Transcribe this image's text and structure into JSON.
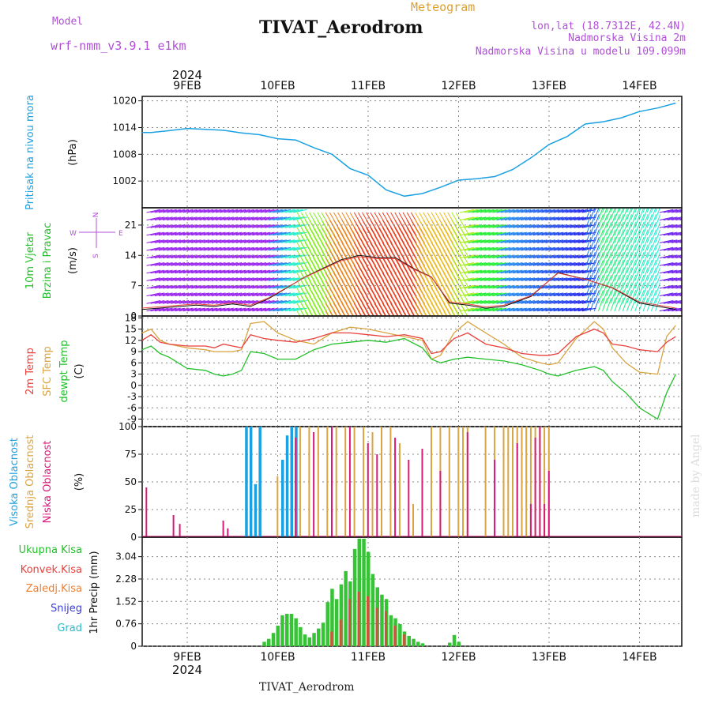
{
  "header": {
    "model_label": "Model",
    "model_name": "wrf-nmm_v3.9.1 e1km",
    "title": "TIVAT_Aerodrom",
    "meteogram": "Meteogram",
    "lonlat": "lon,lat (18.7312E, 42.4N)",
    "elevation": "Nadmorska Visina 2m",
    "model_elevation": "Nadmorska Visina u modelu 109.099m"
  },
  "footer_station": "TIVAT_Aerodrom",
  "credit": "made by Angel",
  "year": "2024",
  "dates": [
    "9FEB",
    "10FEB",
    "11FEB",
    "12FEB",
    "13FEB",
    "14FEB"
  ],
  "colors": {
    "pressure": "#1ba1e2",
    "temp2m": "#e8413c",
    "sfc": "#d9a441",
    "dew": "#22c02a",
    "high_cloud": "#1ba1e2",
    "mid_cloud": "#d9a441",
    "low_cloud": "#d81b7a",
    "total_precip": "#36c436",
    "conv_precip": "#e8413c"
  },
  "panels": {
    "pressure": {
      "label": "Pritisak na nivou mora",
      "unit": "(hPa)"
    },
    "wind": {
      "label1": "10m Vjetar",
      "label2": "Brzina i Pravac",
      "unit": "(m/s)",
      "compass_n": "N",
      "compass_w": "W",
      "compass_e": "E",
      "compass_s": "S"
    },
    "temp": {
      "label1": "2m Temp",
      "label2": "SFC Temp",
      "label3": "dewpt Temp",
      "unit": "(C)"
    },
    "cloud": {
      "label1": "Visoka Oblacnost",
      "label2": "Srednja Oblacnost",
      "label3": "Niska Oblacnost",
      "unit": "(%)"
    },
    "precip": {
      "legend": [
        "Ukupna Kisa",
        "Konvek.Kisa",
        "Zaledj.Kisa",
        "Snijeg",
        "Grad"
      ],
      "unit": "1hr Precip (mm)"
    }
  },
  "chart_data": [
    {
      "type": "line",
      "title": "Pritisak na nivou mora",
      "ylabel": "(hPa)",
      "ylim": [
        996,
        1021
      ],
      "yticks": [
        "1002",
        "1008",
        "1014",
        "1020"
      ],
      "x_days": [
        0,
        0.1,
        0.3,
        0.5,
        0.7,
        0.9,
        1.1,
        1.3,
        1.5,
        1.7,
        1.9,
        2.1,
        2.3,
        2.5,
        2.7,
        2.9,
        3.1,
        3.3,
        3.5,
        3.7,
        3.9,
        4.1,
        4.3,
        4.5,
        4.7,
        4.9,
        5.1,
        5.3,
        5.5,
        5.7,
        5.9
      ],
      "series": [
        {
          "values": [
            1012.9,
            1012.9,
            1013.3,
            1013.8,
            1013.6,
            1013.4,
            1012.8,
            1012.4,
            1011.5,
            1011.2,
            1009.5,
            1008,
            1004.8,
            1003.3,
            1000,
            998.6,
            999.2,
            1000.6,
            1002.2,
            1002.5,
            1003,
            1004.6,
            1007.2,
            1010.2,
            1012,
            1014.8,
            1015.3,
            1016.2,
            1017.6,
            1018.4,
            1019.5
          ]
        }
      ]
    },
    {
      "type": "line",
      "title": "10m Vjetar Brzina i Pravac",
      "ylabel": "(m/s)",
      "ylim": [
        0,
        25
      ],
      "yticks": [
        "0",
        "7",
        "14",
        "21"
      ],
      "x_days": [
        0,
        0.3,
        0.6,
        0.8,
        1.0,
        1.2,
        1.4,
        1.6,
        1.8,
        2.0,
        2.2,
        2.4,
        2.6,
        2.8,
        3.0,
        3.2,
        3.4,
        3.6,
        3.8,
        4.0,
        4.3,
        4.6,
        4.9,
        5.2,
        5.5,
        5.9
      ],
      "series": [
        {
          "values": [
            1.5,
            2,
            2.5,
            2.2,
            2.8,
            2.2,
            4,
            6.5,
            9,
            11,
            13,
            14,
            13.5,
            13.5,
            11,
            9,
            3,
            2.5,
            1.8,
            2.2,
            4.5,
            10,
            8.5,
            6.5,
            3,
            1.5
          ]
        }
      ]
    },
    {
      "type": "line",
      "title": "2m Temp / SFC Temp / dewpt Temp",
      "ylabel": "(C)",
      "ylim": [
        -11,
        18.5
      ],
      "yticks": [
        "-9",
        "-6",
        "-3",
        "0",
        "3",
        "6",
        "9",
        "12",
        "15",
        "18"
      ],
      "x_days": [
        0,
        0.1,
        0.2,
        0.3,
        0.5,
        0.7,
        0.8,
        0.9,
        1.0,
        1.1,
        1.2,
        1.35,
        1.5,
        1.7,
        1.9,
        2.1,
        2.3,
        2.5,
        2.7,
        2.9,
        3.1,
        3.2,
        3.3,
        3.45,
        3.6,
        3.8,
        4.0,
        4.2,
        4.4,
        4.5,
        4.6,
        4.8,
        5.0,
        5.1,
        5.2,
        5.35,
        5.5,
        5.7,
        5.8,
        5.9
      ],
      "series": [
        {
          "name": "2m Temp",
          "values": [
            12,
            13.5,
            11.5,
            11,
            10.5,
            10.5,
            10,
            11,
            10.5,
            10,
            13.5,
            12.5,
            12,
            11.5,
            12.5,
            14,
            14,
            13.5,
            13,
            13.5,
            12.5,
            8.5,
            9,
            12.5,
            14,
            11,
            10,
            8.5,
            8,
            8,
            8.5,
            13,
            15,
            14,
            11,
            10.5,
            9.5,
            9,
            11.5,
            13
          ]
        },
        {
          "name": "SFC Temp",
          "values": [
            14,
            15,
            12,
            11,
            10,
            9.5,
            9,
            9,
            9,
            9.5,
            16.5,
            17,
            14,
            12,
            11,
            14,
            15.5,
            15,
            14,
            13,
            12,
            7,
            8,
            14,
            17,
            14,
            11,
            7.5,
            6,
            5.5,
            6,
            12.5,
            17,
            15,
            10,
            6,
            3.5,
            3,
            13,
            16
          ]
        },
        {
          "name": "dewpt Temp",
          "values": [
            9.5,
            10.5,
            8.5,
            7.5,
            4.5,
            4,
            3,
            2.5,
            3,
            4,
            9,
            8.5,
            7,
            7,
            9.5,
            11,
            11.5,
            12,
            11.5,
            12.5,
            10,
            7,
            6,
            7,
            7.5,
            7,
            6.5,
            5.5,
            4,
            3,
            2.5,
            4,
            5,
            4,
            1,
            -2,
            -6,
            -9,
            -2,
            3
          ]
        }
      ]
    },
    {
      "type": "bar",
      "title": "Visoka / Srednja / Niska Oblacnost",
      "ylabel": "(%)",
      "ylim": [
        0,
        100
      ],
      "yticks": [
        "0",
        "25",
        "50",
        "75",
        "100"
      ],
      "series": [
        {
          "name": "Visoka Oblacnost",
          "x_days": [
            1.15,
            1.2,
            1.25,
            1.3,
            1.55,
            1.6,
            1.65,
            1.7
          ],
          "values": [
            100,
            100,
            48,
            100,
            70,
            92,
            100,
            100
          ]
        },
        {
          "name": "Srednja Oblacnost",
          "x_days": [
            1.5,
            1.75,
            1.85,
            1.95,
            2.05,
            2.15,
            2.25,
            2.35,
            2.45,
            2.55,
            2.65,
            2.75,
            2.85,
            3.0,
            3.2,
            3.3,
            3.4,
            3.5,
            3.55,
            3.6,
            3.8,
            3.9,
            4.0,
            4.05,
            4.1,
            4.15,
            4.2,
            4.25,
            4.3,
            4.35,
            4.4,
            4.45,
            4.5
          ],
          "values": [
            55,
            100,
            100,
            100,
            100,
            100,
            100,
            100,
            100,
            95,
            100,
            100,
            85,
            30,
            100,
            100,
            100,
            100,
            100,
            100,
            100,
            100,
            100,
            100,
            100,
            100,
            100,
            100,
            100,
            100,
            100,
            100,
            100
          ]
        },
        {
          "name": "Niska Oblacnost",
          "x_days": [
            0.05,
            0.35,
            0.42,
            0.9,
            0.95,
            1.7,
            1.9,
            2.1,
            2.3,
            2.5,
            2.6,
            2.8,
            2.95,
            3.1,
            3.3,
            3.6,
            3.9,
            4.15,
            4.3,
            4.35,
            4.4,
            4.45,
            4.5
          ],
          "values": [
            45,
            20,
            12,
            15,
            8,
            90,
            95,
            100,
            100,
            85,
            75,
            90,
            70,
            80,
            60,
            95,
            70,
            85,
            30,
            90,
            100,
            30,
            60
          ]
        }
      ]
    },
    {
      "type": "bar",
      "title": "1hr Precip",
      "ylabel": "1hr Precip (mm)",
      "ylim": [
        0,
        3.7
      ],
      "yticks": [
        "0",
        "0.76",
        "1.52",
        "2.28",
        "3.04"
      ],
      "series": [
        {
          "name": "Ukupna Kisa",
          "x_days": [
            1.35,
            1.4,
            1.45,
            1.5,
            1.55,
            1.6,
            1.65,
            1.7,
            1.75,
            1.8,
            1.85,
            1.9,
            1.95,
            2.0,
            2.05,
            2.1,
            2.15,
            2.2,
            2.25,
            2.3,
            2.35,
            2.4,
            2.45,
            2.5,
            2.55,
            2.6,
            2.65,
            2.7,
            2.75,
            2.8,
            2.85,
            2.9,
            2.95,
            3.0,
            3.05,
            3.1,
            3.4,
            3.45,
            3.5
          ],
          "values": [
            0.15,
            0.25,
            0.45,
            0.7,
            1.05,
            1.1,
            1.1,
            0.95,
            0.65,
            0.4,
            0.3,
            0.45,
            0.6,
            0.8,
            1.5,
            1.95,
            1.6,
            2.1,
            2.55,
            2.2,
            3.3,
            3.65,
            3.65,
            3.2,
            2.45,
            2.0,
            1.75,
            1.6,
            1.05,
            0.95,
            0.75,
            0.5,
            0.35,
            0.25,
            0.15,
            0.1,
            0.12,
            0.38,
            0.15
          ]
        },
        {
          "name": "Konvek.Kisa",
          "x_days": [
            2.1,
            2.2,
            2.3,
            2.4,
            2.5,
            2.6,
            2.7,
            2.8,
            2.9
          ],
          "values": [
            0.5,
            0.9,
            1.6,
            1.85,
            1.7,
            1.3,
            1.2,
            0.7,
            0.4
          ]
        }
      ]
    }
  ]
}
